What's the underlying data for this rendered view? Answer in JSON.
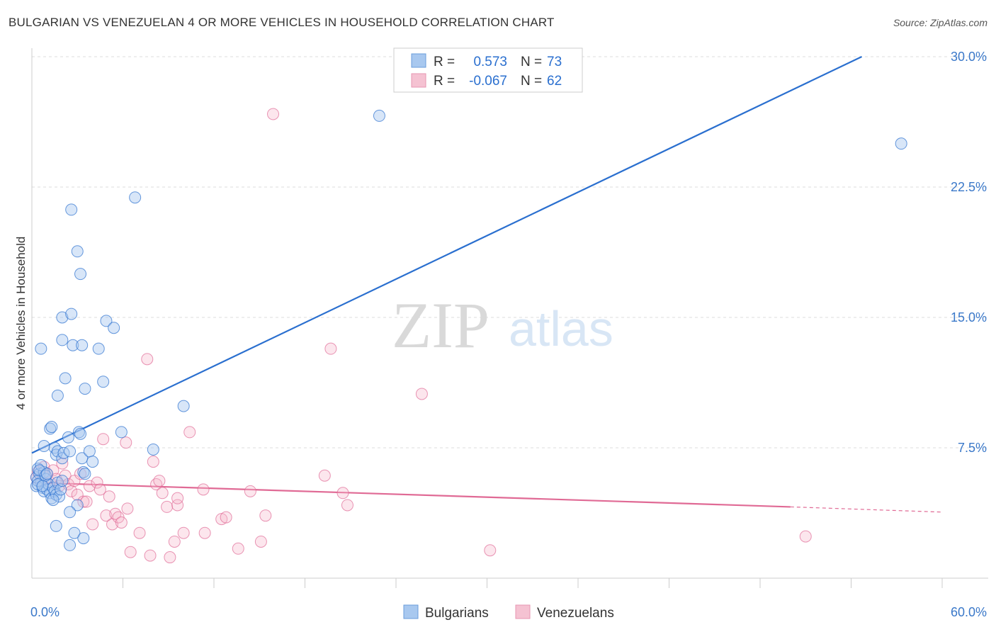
{
  "title": "BULGARIAN VS VENEZUELAN 4 OR MORE VEHICLES IN HOUSEHOLD CORRELATION CHART",
  "source": "Source: ZipAtlas.com",
  "watermark": {
    "zip": "ZIP",
    "atlas": "atlas"
  },
  "colors": {
    "blue": "#2a6fcf",
    "blue_fill": "#a8c8ef",
    "pink": "#e06a95",
    "pink_fill": "#f5b8cb",
    "tick_blue": "#3a78c9",
    "grid": "#dddddd"
  },
  "chart_data": {
    "type": "scatter",
    "xlabel": "",
    "ylabel": "4 or more Vehicles in Household",
    "xlim": [
      0,
      60
    ],
    "ylim": [
      0,
      30
    ],
    "x_tick_labels": [
      {
        "value": 0,
        "label": "0.0%"
      },
      {
        "value": 60,
        "label": "60.0%"
      }
    ],
    "y_tick_labels": [
      {
        "value": 7.5,
        "label": "7.5%"
      },
      {
        "value": 15,
        "label": "15.0%"
      },
      {
        "value": 22.5,
        "label": "22.5%"
      },
      {
        "value": 30,
        "label": "30.0%"
      }
    ],
    "legend_stats": [
      {
        "r_label": "R =",
        "r_value": "0.573",
        "n_label": "N =",
        "n_value": "73"
      },
      {
        "r_label": "R =",
        "r_value": "-0.067",
        "n_label": "N =",
        "n_value": "62"
      }
    ],
    "series": [
      {
        "name": "Bulgarians",
        "trend": {
          "x": [
            0,
            54.7
          ],
          "y": [
            7.2,
            30.0
          ]
        },
        "points": [
          [
            0.3,
            5.3
          ],
          [
            0.3,
            5.8
          ],
          [
            0.4,
            6.3
          ],
          [
            0.5,
            6.0
          ],
          [
            0.6,
            5.5
          ],
          [
            0.7,
            5.2
          ],
          [
            0.8,
            5.0
          ],
          [
            0.8,
            6.1
          ],
          [
            0.9,
            5.7
          ],
          [
            1.0,
            5.1
          ],
          [
            1.1,
            5.4
          ],
          [
            1.2,
            4.9
          ],
          [
            1.3,
            4.6
          ],
          [
            1.4,
            5.2
          ],
          [
            1.5,
            5.0
          ],
          [
            1.6,
            4.8
          ],
          [
            1.7,
            5.5
          ],
          [
            1.8,
            4.7
          ],
          [
            1.9,
            5.1
          ],
          [
            2.0,
            5.6
          ],
          [
            0.6,
            6.5
          ],
          [
            0.8,
            7.6
          ],
          [
            1.2,
            8.6
          ],
          [
            1.3,
            8.7
          ],
          [
            1.5,
            7.5
          ],
          [
            1.6,
            7.1
          ],
          [
            1.7,
            7.3
          ],
          [
            2.0,
            6.9
          ],
          [
            2.1,
            7.2
          ],
          [
            2.4,
            8.1
          ],
          [
            2.5,
            7.3
          ],
          [
            3.1,
            8.4
          ],
          [
            3.2,
            8.3
          ],
          [
            3.3,
            6.9
          ],
          [
            3.4,
            6.1
          ],
          [
            3.5,
            6.0
          ],
          [
            3.8,
            7.3
          ],
          [
            4.0,
            6.7
          ],
          [
            3.0,
            4.2
          ],
          [
            2.5,
            3.8
          ],
          [
            1.6,
            3.0
          ],
          [
            2.8,
            2.6
          ],
          [
            3.4,
            2.3
          ],
          [
            2.5,
            1.9
          ],
          [
            1.7,
            10.5
          ],
          [
            2.2,
            11.5
          ],
          [
            3.5,
            10.9
          ],
          [
            4.7,
            11.3
          ],
          [
            0.6,
            13.2
          ],
          [
            2.0,
            13.7
          ],
          [
            2.7,
            13.4
          ],
          [
            3.3,
            13.4
          ],
          [
            4.4,
            13.2
          ],
          [
            2.0,
            15.0
          ],
          [
            2.6,
            15.2
          ],
          [
            4.9,
            14.8
          ],
          [
            5.4,
            14.4
          ],
          [
            2.6,
            21.2
          ],
          [
            3.0,
            18.8
          ],
          [
            3.2,
            17.5
          ],
          [
            6.8,
            21.9
          ],
          [
            5.9,
            8.4
          ],
          [
            8.0,
            7.4
          ],
          [
            10.0,
            9.9
          ],
          [
            22.9,
            26.6
          ],
          [
            57.3,
            25.0
          ],
          [
            0.4,
            5.6
          ],
          [
            0.5,
            6.2
          ],
          [
            0.9,
            5.9
          ],
          [
            1.0,
            6.0
          ],
          [
            1.4,
            4.5
          ],
          [
            0.4,
            5.4
          ],
          [
            0.7,
            5.3
          ]
        ]
      },
      {
        "name": "Venezuelans",
        "trend": {
          "x": [
            0,
            50.0
          ],
          "y": [
            5.5,
            4.1
          ]
        },
        "trend_dashed": {
          "x": [
            50.0,
            60.0
          ],
          "y": [
            4.1,
            3.8
          ]
        },
        "points": [
          [
            0.3,
            5.8
          ],
          [
            0.4,
            6.1
          ],
          [
            0.6,
            5.6
          ],
          [
            0.8,
            6.4
          ],
          [
            1.0,
            6.0
          ],
          [
            1.2,
            5.5
          ],
          [
            1.4,
            6.2
          ],
          [
            1.6,
            5.7
          ],
          [
            1.8,
            5.3
          ],
          [
            2.0,
            6.6
          ],
          [
            2.2,
            5.9
          ],
          [
            2.4,
            5.4
          ],
          [
            2.6,
            5.0
          ],
          [
            2.8,
            5.6
          ],
          [
            3.0,
            4.8
          ],
          [
            3.2,
            6.0
          ],
          [
            3.4,
            4.4
          ],
          [
            3.6,
            4.4
          ],
          [
            3.8,
            5.3
          ],
          [
            4.0,
            3.1
          ],
          [
            4.3,
            5.5
          ],
          [
            4.5,
            5.1
          ],
          [
            4.7,
            8.0
          ],
          [
            4.9,
            3.6
          ],
          [
            5.1,
            4.7
          ],
          [
            5.3,
            3.1
          ],
          [
            5.5,
            3.7
          ],
          [
            5.7,
            3.5
          ],
          [
            5.9,
            3.2
          ],
          [
            6.2,
            7.8
          ],
          [
            6.3,
            4.0
          ],
          [
            6.5,
            1.5
          ],
          [
            7.1,
            2.6
          ],
          [
            7.6,
            12.6
          ],
          [
            7.8,
            1.3
          ],
          [
            8.0,
            6.7
          ],
          [
            8.2,
            5.4
          ],
          [
            8.4,
            5.6
          ],
          [
            8.6,
            4.9
          ],
          [
            8.9,
            4.1
          ],
          [
            9.1,
            1.2
          ],
          [
            9.6,
            4.2
          ],
          [
            9.4,
            2.1
          ],
          [
            9.6,
            4.6
          ],
          [
            10.4,
            8.4
          ],
          [
            10.0,
            2.6
          ],
          [
            11.3,
            5.1
          ],
          [
            11.4,
            2.6
          ],
          [
            12.5,
            3.4
          ],
          [
            12.8,
            3.5
          ],
          [
            13.6,
            1.7
          ],
          [
            14.4,
            5.0
          ],
          [
            15.1,
            2.1
          ],
          [
            15.4,
            3.6
          ],
          [
            15.9,
            26.7
          ],
          [
            19.3,
            5.9
          ],
          [
            19.7,
            13.2
          ],
          [
            20.5,
            4.9
          ],
          [
            20.8,
            4.2
          ],
          [
            25.7,
            10.6
          ],
          [
            30.2,
            1.6
          ],
          [
            51.0,
            2.4
          ]
        ]
      }
    ]
  },
  "legend": [
    {
      "label": "Bulgarians"
    },
    {
      "label": "Venezuelans"
    }
  ]
}
